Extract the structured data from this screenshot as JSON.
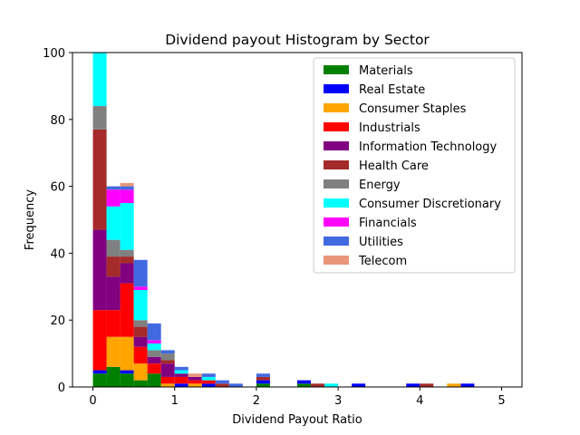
{
  "chart_data": {
    "type": "bar",
    "stacked": true,
    "title": "Dividend payout Histogram by Sector",
    "xlabel": "Dividend Payout Ratio",
    "ylabel": "Frequency",
    "xlim": [
      -0.25,
      5.25
    ],
    "ylim": [
      0,
      100
    ],
    "xticks": [
      0,
      1,
      2,
      3,
      4,
      5
    ],
    "yticks": [
      0,
      20,
      40,
      60,
      80,
      100
    ],
    "bin_edges": [
      0,
      0.1667,
      0.3333,
      0.5,
      0.6667,
      0.8333,
      1.0,
      1.1667,
      1.3333,
      1.5,
      1.6667,
      1.8333,
      2.0,
      2.1667,
      2.3333,
      2.5,
      2.6667,
      2.8333,
      3.0,
      3.1667,
      3.3333,
      3.5,
      3.6667,
      3.8333,
      4.0,
      4.1667,
      4.3333,
      4.5,
      4.6667,
      4.8333,
      5.0
    ],
    "legend_position": "upper right",
    "grid": false,
    "series": [
      {
        "name": "Materials",
        "color": "#008000",
        "values": [
          4,
          6,
          4,
          2,
          4,
          0,
          0,
          0,
          0,
          0,
          0,
          0,
          1,
          0,
          0,
          1,
          0,
          0,
          0,
          0,
          0,
          0,
          0,
          0,
          0,
          0,
          0,
          0,
          0,
          0
        ]
      },
      {
        "name": "Real Estate",
        "color": "#0000FF",
        "values": [
          1,
          0,
          1,
          0,
          0,
          0,
          1,
          0,
          1,
          0,
          0,
          0,
          1,
          0,
          0,
          1,
          0,
          0,
          0,
          1,
          0,
          0,
          0,
          1,
          0,
          0,
          0,
          1,
          0,
          0
        ]
      },
      {
        "name": "Consumer Staples",
        "color": "#FFA500",
        "values": [
          0,
          9,
          10,
          5,
          0,
          1,
          0,
          1,
          0,
          0,
          0,
          0,
          0,
          0,
          0,
          0,
          0,
          0,
          0,
          0,
          0,
          0,
          0,
          0,
          0,
          0,
          1,
          0,
          0,
          0
        ]
      },
      {
        "name": "Industrials",
        "color": "#FF0000",
        "values": [
          18,
          8,
          16,
          5,
          3,
          2,
          2,
          1,
          1,
          0,
          0,
          0,
          0,
          0,
          0,
          0,
          0,
          0,
          0,
          0,
          0,
          0,
          0,
          0,
          0,
          0,
          0,
          0,
          0,
          0
        ]
      },
      {
        "name": "Information Technology",
        "color": "#800080",
        "values": [
          24,
          10,
          6,
          3,
          2,
          4,
          1,
          1,
          0,
          0,
          0,
          0,
          0,
          0,
          0,
          0,
          0,
          0,
          0,
          0,
          0,
          0,
          0,
          0,
          0,
          0,
          0,
          0,
          0,
          0
        ]
      },
      {
        "name": "Health Care",
        "color": "#A52A2A",
        "values": [
          30,
          6,
          2,
          3,
          0,
          1,
          0,
          0,
          0,
          1,
          0,
          0,
          1,
          0,
          0,
          0,
          1,
          0,
          0,
          0,
          0,
          0,
          0,
          0,
          1,
          0,
          0,
          0,
          0,
          0
        ]
      },
      {
        "name": "Energy",
        "color": "#808080",
        "values": [
          7,
          5,
          2,
          2,
          2,
          2,
          0,
          0,
          0,
          0,
          0,
          0,
          0,
          0,
          0,
          0,
          0,
          0,
          0,
          0,
          0,
          0,
          0,
          0,
          0,
          0,
          0,
          0,
          0,
          0
        ]
      },
      {
        "name": "Consumer Discretionary",
        "color": "#00FFFF",
        "values": [
          16,
          10,
          14,
          9,
          2,
          0,
          1,
          0,
          1,
          0,
          0,
          0,
          0,
          0,
          0,
          0,
          0,
          1,
          0,
          0,
          0,
          0,
          0,
          0,
          0,
          0,
          0,
          0,
          0,
          0
        ]
      },
      {
        "name": "Financials",
        "color": "#FF00FF",
        "values": [
          0,
          5,
          4,
          1,
          1,
          0,
          0,
          0,
          0,
          0,
          0,
          0,
          0,
          0,
          0,
          0,
          0,
          0,
          0,
          0,
          0,
          0,
          0,
          0,
          0,
          0,
          0,
          0,
          0,
          0
        ]
      },
      {
        "name": "Utilities",
        "color": "#4169E1",
        "values": [
          0,
          1,
          1,
          8,
          5,
          1,
          1,
          0,
          1,
          1,
          1,
          0,
          1,
          0,
          0,
          0,
          0,
          0,
          0,
          0,
          0,
          0,
          0,
          0,
          0,
          0,
          0,
          0,
          0,
          0
        ]
      },
      {
        "name": "Telecom",
        "color": "#E9967A",
        "values": [
          0,
          0,
          1,
          0,
          0,
          0,
          0,
          1,
          0,
          0,
          0,
          0,
          0,
          0,
          0,
          0,
          0,
          0,
          0,
          0,
          0,
          0,
          0,
          0,
          0,
          0,
          0,
          0,
          0,
          0
        ]
      }
    ]
  }
}
